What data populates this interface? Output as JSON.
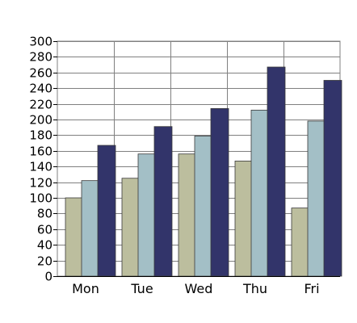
{
  "chart_data": {
    "type": "bar",
    "categories": [
      "Mon",
      "Tue",
      "Wed",
      "Thu",
      "Fri"
    ],
    "series": [
      {
        "values": [
          100,
          125,
          156,
          147,
          87
        ],
        "color": "#bcbe9e"
      },
      {
        "values": [
          122,
          156,
          179,
          212,
          198
        ],
        "color": "#a3bfc6"
      },
      {
        "values": [
          167,
          191,
          214,
          267,
          250
        ],
        "color": "#32346a"
      }
    ],
    "ylim": [
      0,
      300
    ],
    "yticks": [
      0,
      20,
      40,
      60,
      80,
      100,
      120,
      140,
      160,
      180,
      200,
      220,
      240,
      260,
      280,
      300
    ],
    "grid": true,
    "legend": "none",
    "title": "",
    "xlabel": "",
    "ylabel": ""
  }
}
